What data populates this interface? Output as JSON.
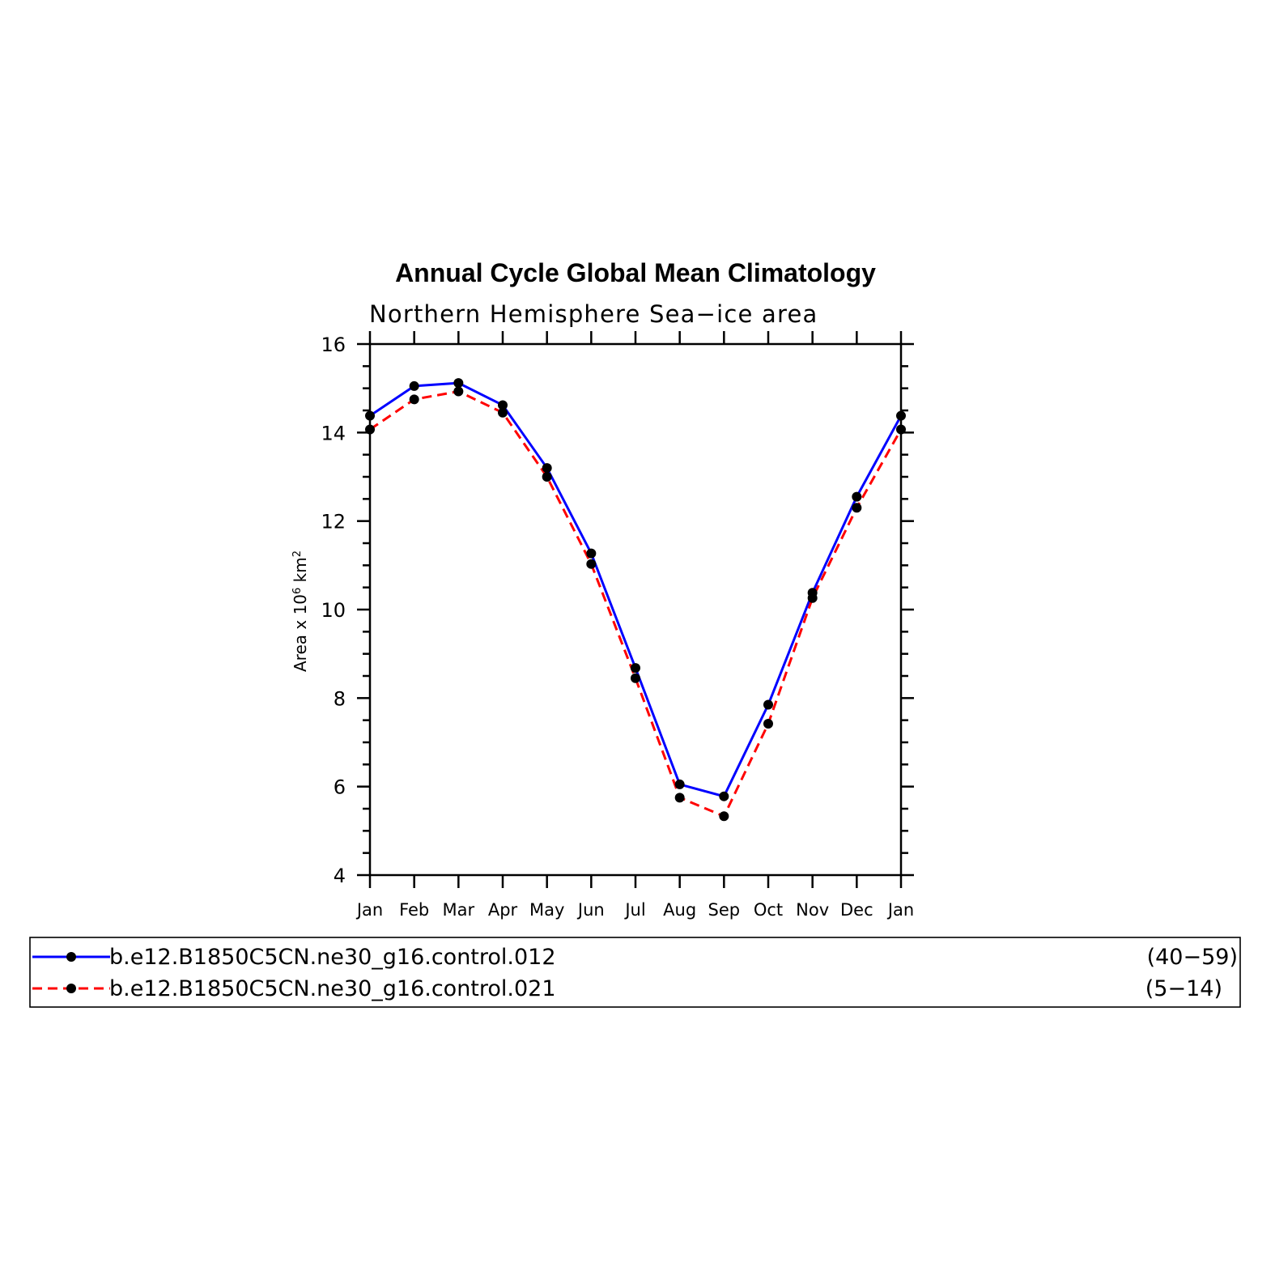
{
  "chart_data": {
    "type": "line",
    "title": "Annual Cycle Global Mean Climatology",
    "subtitle": "Northern Hemisphere Sea−ice area",
    "ylabel": {
      "prefix": "Area x 10",
      "exp1": "6",
      "mid": " km",
      "exp2": "2"
    },
    "xlabel": "",
    "categories": [
      "Jan",
      "Feb",
      "Mar",
      "Apr",
      "May",
      "Jun",
      "Jul",
      "Aug",
      "Sep",
      "Oct",
      "Nov",
      "Dec",
      "Jan"
    ],
    "ylim": [
      4,
      16
    ],
    "yticks": [
      4,
      6,
      8,
      10,
      12,
      14,
      16
    ],
    "grid": false,
    "legend_position": "bottom",
    "series": [
      {
        "name": "b.e12.B1850C5CN.ne30_g16.control.012",
        "years": "(40−59)",
        "color": "#0000ff",
        "dash": "solid",
        "values": [
          14.38,
          15.05,
          15.12,
          14.62,
          13.2,
          11.27,
          8.68,
          6.05,
          5.78,
          7.85,
          10.38,
          12.55,
          14.38
        ]
      },
      {
        "name": "b.e12.B1850C5CN.ne30_g16.control.021",
        "years": "(5−14)",
        "color": "#ff0000",
        "dash": "dashed",
        "values": [
          14.07,
          14.75,
          14.93,
          14.45,
          13.0,
          11.03,
          8.45,
          5.75,
          5.33,
          7.42,
          10.26,
          12.3,
          14.07
        ]
      }
    ],
    "marker_color": "#000000"
  }
}
